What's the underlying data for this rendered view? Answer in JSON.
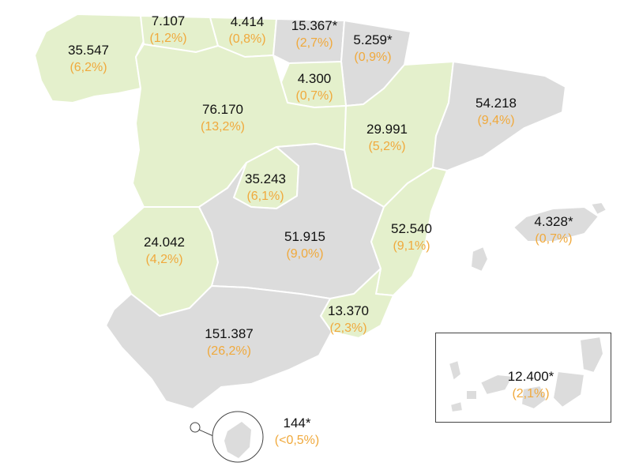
{
  "map": {
    "regions": [
      {
        "id": "galicia",
        "value": "35.547",
        "pct": "(6,2%)",
        "shade": "green"
      },
      {
        "id": "asturias",
        "value": "7.107",
        "pct": "(1,2%)",
        "shade": "green"
      },
      {
        "id": "cantabria",
        "value": "4.414",
        "pct": "(0,8%)",
        "shade": "green"
      },
      {
        "id": "pais-vasco",
        "value": "15.367*",
        "pct": "(2,7%)",
        "shade": "grey"
      },
      {
        "id": "navarra",
        "value": "5.259*",
        "pct": "(0,9%)",
        "shade": "grey"
      },
      {
        "id": "la-rioja",
        "value": "4.300",
        "pct": "(0,7%)",
        "shade": "green"
      },
      {
        "id": "castilla-leon",
        "value": "76.170",
        "pct": "(13,2%)",
        "shade": "green"
      },
      {
        "id": "aragon",
        "value": "29.991",
        "pct": "(5,2%)",
        "shade": "green"
      },
      {
        "id": "cataluna",
        "value": "54.218",
        "pct": "(9,4%)",
        "shade": "grey"
      },
      {
        "id": "madrid",
        "value": "35.243",
        "pct": "(6,1%)",
        "shade": "green"
      },
      {
        "id": "extremadura",
        "value": "24.042",
        "pct": "(4,2%)",
        "shade": "green"
      },
      {
        "id": "castilla-la-mancha",
        "value": "51.915",
        "pct": "(9,0%)",
        "shade": "grey"
      },
      {
        "id": "comunidad-valenciana",
        "value": "52.540",
        "pct": "(9,1%)",
        "shade": "green"
      },
      {
        "id": "baleares",
        "value": "4.328*",
        "pct": "(0,7%)",
        "shade": "grey"
      },
      {
        "id": "murcia",
        "value": "13.370",
        "pct": "(2,3%)",
        "shade": "green"
      },
      {
        "id": "andalucia",
        "value": "151.387",
        "pct": "(26,2%)",
        "shade": "grey"
      },
      {
        "id": "ceuta-melilla",
        "value": "144*",
        "pct": "(<0,5%)",
        "shade": "grey"
      },
      {
        "id": "canarias",
        "value": "12.400*",
        "pct": "(2,1%)",
        "shade": "grey"
      }
    ],
    "colors": {
      "green_fill": "#e4f0cc",
      "grey_fill": "#dcdcdc",
      "value_text": "#111111",
      "pct_text": "#f0a93c"
    }
  }
}
